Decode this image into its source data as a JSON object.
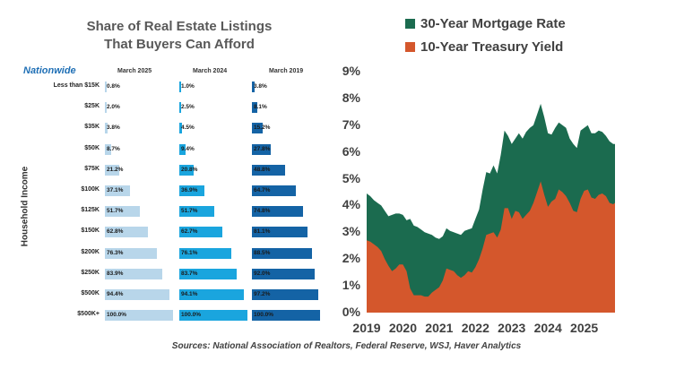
{
  "left_title": [
    "Share of Real Estate Listings",
    "That Buyers Can Afford"
  ],
  "brand": "Nationwide",
  "column_headers": [
    "March 2025",
    "March 2024",
    "March 2019"
  ],
  "y_axis_label": "Household Income",
  "legend": [
    {
      "label": "30-Year Mortgage Rate",
      "color": "#1b6b4f"
    },
    {
      "label": "10-Year Treasury Yield",
      "color": "#d4572c"
    }
  ],
  "source": "Sources: National Association of Realtors, Federal Reserve, WSJ, Haver Analytics",
  "chart_data": [
    {
      "type": "bar",
      "title": "Share of Real Estate Listings That Buyers Can Afford",
      "ylabel": "Household Income",
      "categories": [
        "Less than $15K",
        "$25K",
        "$35K",
        "$50K",
        "$75K",
        "$100K",
        "$125K",
        "$150K",
        "$200K",
        "$250K",
        "$500K",
        "$500K+"
      ],
      "series": [
        {
          "name": "March 2025",
          "color": "#b8d6ea",
          "values": [
            0.8,
            2.0,
            3.8,
            8.7,
            21.2,
            37.1,
            51.7,
            62.8,
            76.3,
            83.9,
            94.4,
            100.0
          ],
          "labels": [
            "0.8%",
            "2.0%",
            "3.8%",
            "8.7%",
            "21.2%",
            "37.1%",
            "51.7%",
            "62.8%",
            "76.3%",
            "83.9%",
            "94.4%",
            "100.0%"
          ]
        },
        {
          "name": "March 2024",
          "color": "#1aa5de",
          "values": [
            1.0,
            2.5,
            4.5,
            9.4,
            20.8,
            36.9,
            51.7,
            62.7,
            76.1,
            83.7,
            94.1,
            100.0
          ],
          "labels": [
            "1.0%",
            "2.5%",
            "4.5%",
            "9.4%",
            "20.8%",
            "36.9%",
            "51.7%",
            "62.7%",
            "76.1%",
            "83.7%",
            "94.1%",
            "100.0%"
          ]
        },
        {
          "name": "March 2019",
          "color": "#1463a5",
          "values": [
            3.8,
            8.1,
            15.2,
            27.8,
            48.8,
            64.7,
            74.8,
            81.1,
            88.5,
            92.0,
            97.2,
            100.0
          ],
          "labels": [
            "3.8%",
            "8.1%",
            "15.2%",
            "27.8%",
            "48.8%",
            "64.7%",
            "74.8%",
            "81.1%",
            "88.5%",
            "92.0%",
            "97.2%",
            "100.0%"
          ]
        }
      ]
    },
    {
      "type": "area",
      "x_ticks": [
        "2019",
        "2020",
        "2021",
        "2022",
        "2023",
        "2024",
        "2025"
      ],
      "y_ticks": [
        "0%",
        "1%",
        "2%",
        "3%",
        "4%",
        "5%",
        "6%",
        "7%",
        "8%",
        "9%"
      ],
      "ylim": [
        0,
        9
      ],
      "xlim": [
        2019.0,
        2025.85
      ],
      "series": [
        {
          "name": "30-Year Mortgage Rate",
          "color": "#1b6b4f",
          "x": [
            2019.0,
            2019.1,
            2019.2,
            2019.3,
            2019.4,
            2019.5,
            2019.6,
            2019.7,
            2019.8,
            2019.9,
            2020.0,
            2020.1,
            2020.2,
            2020.3,
            2020.4,
            2020.5,
            2020.6,
            2020.7,
            2020.8,
            2020.9,
            2021.0,
            2021.1,
            2021.2,
            2021.3,
            2021.4,
            2021.5,
            2021.6,
            2021.7,
            2021.8,
            2021.9,
            2022.0,
            2022.1,
            2022.2,
            2022.3,
            2022.4,
            2022.5,
            2022.6,
            2022.7,
            2022.8,
            2022.9,
            2023.0,
            2023.1,
            2023.2,
            2023.3,
            2023.4,
            2023.5,
            2023.6,
            2023.7,
            2023.8,
            2023.9,
            2024.0,
            2024.1,
            2024.2,
            2024.3,
            2024.4,
            2024.5,
            2024.6,
            2024.7,
            2024.8,
            2024.9,
            2025.0,
            2025.1,
            2025.2,
            2025.3,
            2025.4,
            2025.5,
            2025.6,
            2025.7,
            2025.8,
            2025.85
          ],
          "y": [
            4.45,
            4.35,
            4.2,
            4.1,
            4.0,
            3.8,
            3.6,
            3.65,
            3.7,
            3.7,
            3.65,
            3.45,
            3.5,
            3.25,
            3.2,
            3.1,
            3.0,
            2.95,
            2.9,
            2.8,
            2.75,
            2.85,
            3.15,
            3.05,
            3.0,
            2.95,
            2.9,
            3.05,
            3.1,
            3.15,
            3.5,
            3.85,
            4.6,
            5.25,
            5.2,
            5.5,
            5.2,
            5.9,
            6.8,
            6.6,
            6.3,
            6.5,
            6.7,
            6.5,
            6.75,
            6.9,
            7.0,
            7.4,
            7.8,
            7.3,
            6.7,
            6.65,
            6.9,
            7.1,
            7.0,
            6.9,
            6.5,
            6.3,
            6.15,
            6.8,
            6.9,
            7.0,
            6.7,
            6.7,
            6.8,
            6.75,
            6.6,
            6.4,
            6.3,
            6.3
          ]
        },
        {
          "name": "10-Year Treasury Yield",
          "color": "#d4572c",
          "x": [
            2019.0,
            2019.1,
            2019.2,
            2019.3,
            2019.4,
            2019.5,
            2019.6,
            2019.7,
            2019.8,
            2019.9,
            2020.0,
            2020.1,
            2020.2,
            2020.3,
            2020.4,
            2020.5,
            2020.6,
            2020.7,
            2020.8,
            2020.9,
            2021.0,
            2021.1,
            2021.2,
            2021.3,
            2021.4,
            2021.5,
            2021.6,
            2021.7,
            2021.8,
            2021.9,
            2022.0,
            2022.1,
            2022.2,
            2022.3,
            2022.4,
            2022.5,
            2022.6,
            2022.7,
            2022.8,
            2022.9,
            2023.0,
            2023.1,
            2023.2,
            2023.3,
            2023.4,
            2023.5,
            2023.6,
            2023.7,
            2023.8,
            2023.9,
            2024.0,
            2024.1,
            2024.2,
            2024.3,
            2024.4,
            2024.5,
            2024.6,
            2024.7,
            2024.8,
            2024.9,
            2025.0,
            2025.1,
            2025.2,
            2025.3,
            2025.4,
            2025.5,
            2025.6,
            2025.7,
            2025.8,
            2025.85
          ],
          "y": [
            2.7,
            2.65,
            2.55,
            2.45,
            2.3,
            2.0,
            1.75,
            1.55,
            1.65,
            1.8,
            1.8,
            1.55,
            0.9,
            0.65,
            0.65,
            0.65,
            0.6,
            0.6,
            0.75,
            0.85,
            0.95,
            1.2,
            1.65,
            1.6,
            1.55,
            1.4,
            1.3,
            1.4,
            1.55,
            1.5,
            1.7,
            2.0,
            2.4,
            2.9,
            2.95,
            3.0,
            2.8,
            3.1,
            3.9,
            3.9,
            3.5,
            3.8,
            3.75,
            3.5,
            3.65,
            3.8,
            4.1,
            4.5,
            4.9,
            4.4,
            3.95,
            4.15,
            4.25,
            4.6,
            4.5,
            4.35,
            4.1,
            3.8,
            3.75,
            4.25,
            4.55,
            4.6,
            4.3,
            4.25,
            4.4,
            4.45,
            4.35,
            4.1,
            4.05,
            4.1
          ]
        }
      ]
    }
  ]
}
